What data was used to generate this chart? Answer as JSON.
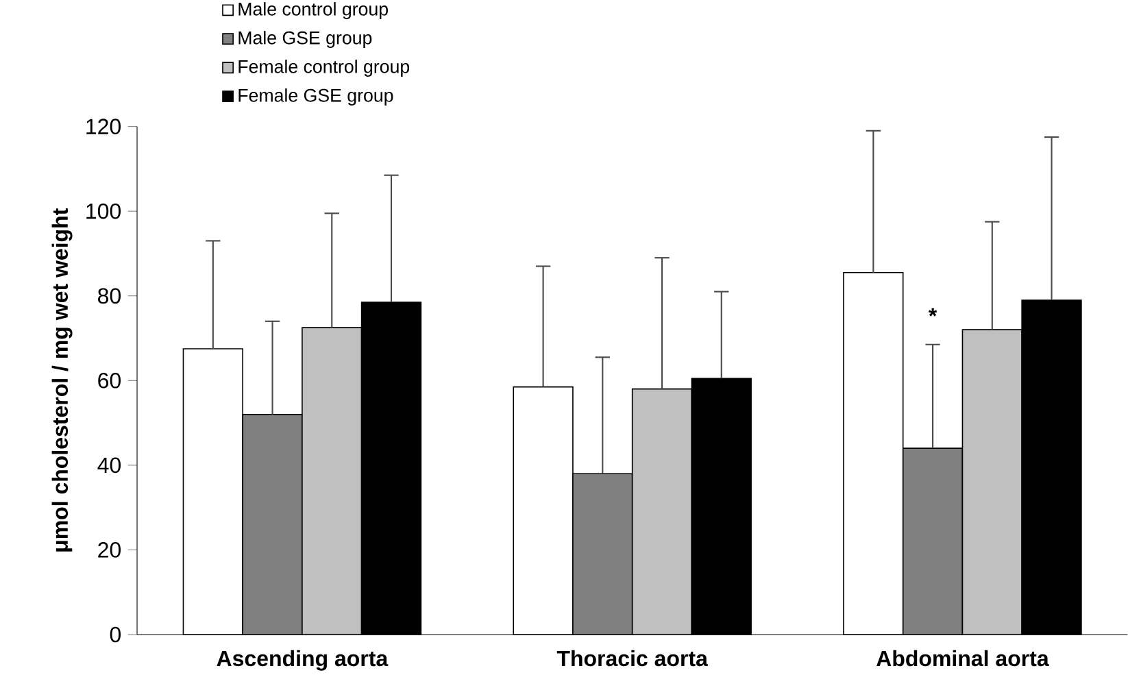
{
  "chart_data": {
    "type": "bar",
    "ylabel": "μmol cholesterol / mg wet weight",
    "categories": [
      "Ascending aorta",
      "Thoracic aorta",
      "Abdominal aorta"
    ],
    "series": [
      {
        "name": "Male control group",
        "color": "#ffffff",
        "values": [
          67.5,
          58.5,
          85.5
        ],
        "errors": [
          [
            67.5,
            93
          ],
          [
            58.5,
            87
          ],
          [
            85.5,
            119
          ]
        ]
      },
      {
        "name": "Male GSE group",
        "color": "#808080",
        "values": [
          52,
          38,
          44
        ],
        "errors": [
          [
            52,
            74
          ],
          [
            38,
            65.5
          ],
          [
            44,
            68.5
          ]
        ]
      },
      {
        "name": "Female control group",
        "color": "#c0c0c0",
        "values": [
          72.5,
          58,
          72
        ],
        "errors": [
          [
            72.5,
            99.5
          ],
          [
            58,
            89
          ],
          [
            72,
            97.5
          ]
        ]
      },
      {
        "name": "Female GSE group",
        "color": "#000000",
        "values": [
          78.5,
          60.5,
          79
        ],
        "errors": [
          [
            78.5,
            108.5
          ],
          [
            60.5,
            81
          ],
          [
            79,
            117.5
          ]
        ]
      }
    ],
    "ylim": [
      0,
      120
    ],
    "yticks": [
      0,
      20,
      40,
      60,
      80,
      100,
      120
    ],
    "annotations": [
      {
        "text": "*",
        "x": "Abdominal aorta",
        "y": 72
      }
    ],
    "legend": "top left",
    "grid": false
  }
}
